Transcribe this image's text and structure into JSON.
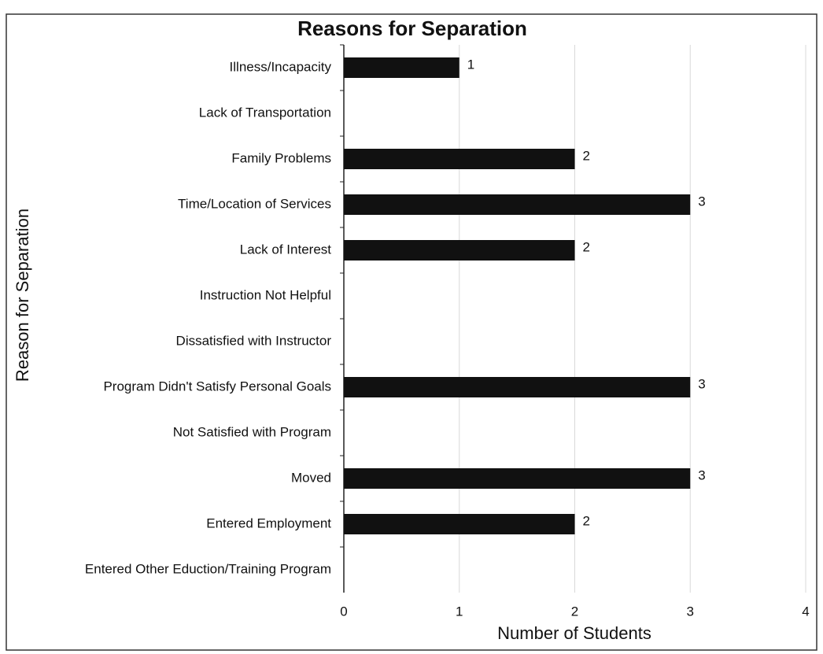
{
  "chart_data": {
    "type": "bar",
    "orientation": "horizontal",
    "title": "Reasons for Separation",
    "x_label": "Number of Students",
    "y_label": "Reason for Separation",
    "categories": [
      "Illness/Incapacity",
      "Lack of Transportation",
      "Family Problems",
      "Time/Location of Services",
      "Lack of Interest",
      "Instruction Not Helpful",
      "Dissatisfied with Instructor",
      "Program Didn't Satisfy Personal Goals",
      "Not Satisfied with Program",
      "Moved",
      "Entered Employment",
      "Entered Other Eduction/Training Program"
    ],
    "values": [
      1,
      0,
      2,
      3,
      2,
      0,
      0,
      3,
      0,
      3,
      2,
      0
    ],
    "color": "#111111",
    "xlim": [
      0,
      4
    ],
    "xticks": [
      0,
      1,
      2,
      3,
      4
    ],
    "grid": true
  }
}
